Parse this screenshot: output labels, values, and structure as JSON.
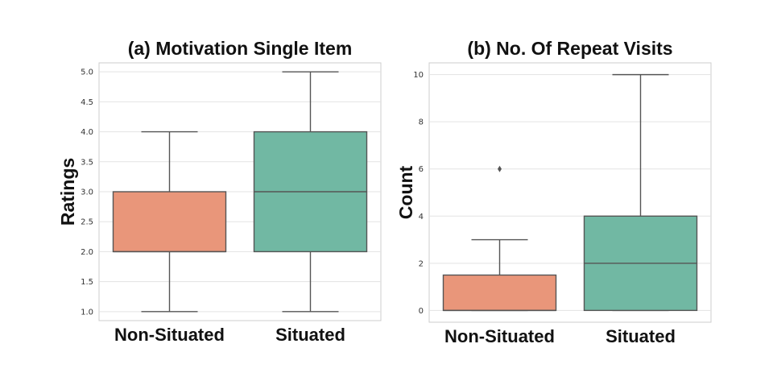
{
  "chart_data": [
    {
      "type": "box",
      "title": "(a) Motivation Single Item",
      "xlabel": "",
      "ylabel": "Ratings",
      "ylim": [
        0.85,
        5.15
      ],
      "yticks": [
        "1.0",
        "1.5",
        "2.0",
        "2.5",
        "3.0",
        "3.5",
        "4.0",
        "4.5",
        "5.0"
      ],
      "grid": true,
      "categories": [
        "Non-Situated",
        "Situated"
      ],
      "boxes": [
        {
          "category": "Non-Situated",
          "color": "#E9967A",
          "whisker_low": 1,
          "q1": 2,
          "median": 2,
          "q3": 3,
          "whisker_high": 4,
          "outliers": []
        },
        {
          "category": "Situated",
          "color": "#71B8A3",
          "whisker_low": 1,
          "q1": 2,
          "median": 3,
          "q3": 4,
          "whisker_high": 5,
          "outliers": []
        }
      ]
    },
    {
      "type": "box",
      "title": "(b) No. Of Repeat Visits",
      "xlabel": "",
      "ylabel": "Count",
      "ylim": [
        -0.5,
        10.5
      ],
      "yticks": [
        "0",
        "2",
        "4",
        "6",
        "8",
        "10"
      ],
      "grid": true,
      "categories": [
        "Non-Situated",
        "Situated"
      ],
      "boxes": [
        {
          "category": "Non-Situated",
          "color": "#E9967A",
          "whisker_low": 0,
          "q1": 0,
          "median": 0,
          "q3": 1.5,
          "whisker_high": 3,
          "outliers": [
            6
          ]
        },
        {
          "category": "Situated",
          "color": "#71B8A3",
          "whisker_low": 0,
          "q1": 0,
          "median": 2,
          "q3": 4,
          "whisker_high": 10,
          "outliers": []
        }
      ]
    }
  ]
}
